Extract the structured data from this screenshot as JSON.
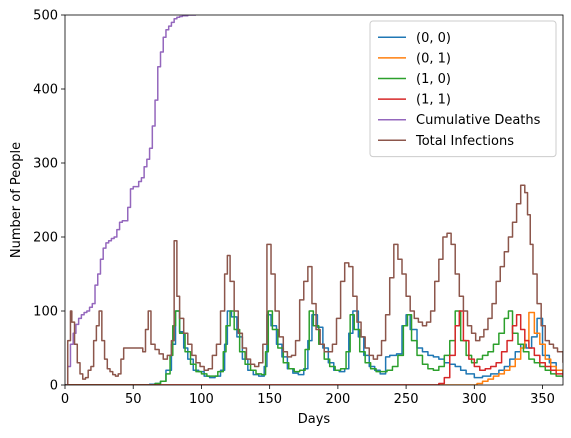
{
  "chart_data": {
    "type": "line",
    "title": "",
    "xlabel": "Days",
    "ylabel": "Number of People",
    "xlim": [
      0,
      365
    ],
    "ylim": [
      0,
      500
    ],
    "xticks": [
      0,
      50,
      100,
      150,
      200,
      250,
      300,
      350
    ],
    "yticks": [
      0,
      100,
      200,
      300,
      400,
      500
    ],
    "grid": false,
    "legend_position": "top-right",
    "series": [
      {
        "name": "(0, 0)",
        "color": "#1f77b4",
        "x": [
          0,
          60,
          62,
          66,
          70,
          74,
          78,
          81,
          84,
          87,
          90,
          94,
          98,
          102,
          106,
          110,
          114,
          117,
          119,
          122,
          126,
          130,
          134,
          138,
          142,
          146,
          148,
          151,
          155,
          159,
          163,
          167,
          171,
          175,
          178,
          181,
          185,
          189,
          193,
          197,
          201,
          205,
          208,
          211,
          215,
          219,
          223,
          227,
          231,
          235,
          238,
          243,
          247,
          250,
          253,
          258,
          262,
          266,
          270,
          274,
          278,
          282,
          286,
          290,
          294,
          300,
          306,
          312,
          318,
          322,
          326,
          330,
          334,
          338,
          342,
          346,
          350,
          355,
          360,
          365
        ],
        "y": [
          0,
          0,
          1,
          2,
          5,
          20,
          55,
          100,
          72,
          50,
          35,
          20,
          18,
          12,
          10,
          12,
          20,
          55,
          100,
          92,
          65,
          35,
          20,
          14,
          12,
          25,
          95,
          80,
          55,
          38,
          22,
          16,
          14,
          22,
          60,
          95,
          78,
          50,
          30,
          20,
          18,
          22,
          70,
          100,
          65,
          40,
          25,
          20,
          15,
          38,
          40,
          42,
          80,
          95,
          75,
          50,
          45,
          40,
          38,
          35,
          30,
          28,
          25,
          20,
          15,
          10,
          12,
          15,
          20,
          25,
          35,
          45,
          55,
          50,
          65,
          90,
          40,
          30,
          20,
          15
        ]
      },
      {
        "name": "(0, 1)",
        "color": "#ff7f0e",
        "x": [
          0,
          298,
          302,
          306,
          310,
          314,
          318,
          322,
          326,
          330,
          334,
          337,
          340,
          344,
          348,
          352,
          356,
          360,
          365
        ],
        "y": [
          0,
          0,
          2,
          5,
          8,
          12,
          15,
          20,
          25,
          35,
          50,
          60,
          98,
          70,
          55,
          35,
          25,
          20,
          15
        ]
      },
      {
        "name": "(1, 0)",
        "color": "#2ca02c",
        "x": [
          0,
          60,
          66,
          70,
          74,
          77,
          79,
          81,
          84,
          88,
          92,
          96,
          100,
          104,
          108,
          112,
          116,
          118,
          121,
          124,
          128,
          132,
          136,
          140,
          144,
          147,
          149,
          152,
          156,
          160,
          164,
          168,
          172,
          176,
          179,
          182,
          186,
          190,
          194,
          198,
          202,
          206,
          209,
          212,
          216,
          220,
          224,
          228,
          232,
          236,
          240,
          244,
          248,
          251,
          254,
          258,
          262,
          266,
          270,
          274,
          278,
          282,
          286,
          290,
          294,
          298,
          302,
          306,
          310,
          314,
          318,
          322,
          325,
          328,
          332,
          336,
          340,
          344,
          348,
          352,
          356,
          360,
          365
        ],
        "y": [
          0,
          0,
          2,
          5,
          15,
          40,
          80,
          100,
          70,
          45,
          28,
          18,
          15,
          12,
          12,
          18,
          45,
          80,
          100,
          75,
          45,
          28,
          20,
          15,
          14,
          45,
          100,
          75,
          50,
          30,
          22,
          18,
          20,
          48,
          100,
          80,
          55,
          35,
          25,
          20,
          22,
          45,
          95,
          75,
          45,
          30,
          22,
          18,
          18,
          20,
          25,
          40,
          80,
          95,
          60,
          40,
          28,
          22,
          20,
          25,
          40,
          60,
          100,
          60,
          40,
          30,
          35,
          40,
          45,
          55,
          70,
          90,
          100,
          70,
          55,
          45,
          35,
          30,
          25,
          20,
          15,
          12,
          10
        ]
      },
      {
        "name": "(1, 1)",
        "color": "#d62728",
        "x": [
          0,
          270,
          274,
          278,
          282,
          286,
          289,
          292,
          296,
          300,
          304,
          308,
          312,
          316,
          320,
          324,
          328,
          331,
          334,
          337,
          340,
          344,
          348,
          352,
          356,
          360,
          365
        ],
        "y": [
          0,
          0,
          2,
          10,
          40,
          80,
          100,
          60,
          35,
          25,
          20,
          22,
          25,
          30,
          45,
          60,
          80,
          95,
          75,
          60,
          50,
          40,
          30,
          25,
          20,
          15,
          12
        ]
      },
      {
        "name": "Cumulative Deaths",
        "color": "#9467bd",
        "x": [
          0,
          2,
          4,
          6,
          8,
          10,
          12,
          14,
          16,
          18,
          20,
          22,
          24,
          26,
          28,
          30,
          32,
          34,
          36,
          38,
          40,
          42,
          44,
          46,
          48,
          50,
          52,
          54,
          56,
          58,
          60,
          62,
          64,
          66,
          68,
          70,
          72,
          74,
          76,
          78,
          80,
          82,
          84,
          86,
          88,
          90,
          92,
          94,
          96
        ],
        "y": [
          0,
          25,
          55,
          70,
          82,
          90,
          95,
          98,
          100,
          105,
          110,
          135,
          150,
          170,
          185,
          192,
          195,
          198,
          200,
          210,
          220,
          222,
          222,
          240,
          265,
          268,
          268,
          275,
          280,
          295,
          305,
          320,
          350,
          385,
          430,
          450,
          470,
          480,
          485,
          490,
          495,
          497,
          498,
          499,
          499,
          500,
          500,
          500,
          500
        ]
      },
      {
        "name": "Total Infections",
        "color": "#8c564b",
        "x": [
          0,
          2,
          4,
          5,
          7,
          9,
          11,
          13,
          15,
          17,
          19,
          21,
          23,
          25,
          27,
          29,
          31,
          33,
          35,
          37,
          39,
          41,
          43,
          46,
          49,
          52,
          55,
          57,
          59,
          61,
          63,
          66,
          69,
          72,
          75,
          78,
          80,
          82,
          84,
          87,
          90,
          93,
          96,
          99,
          102,
          105,
          108,
          111,
          114,
          117,
          119,
          121,
          124,
          127,
          130,
          133,
          136,
          139,
          142,
          145,
          148,
          151,
          154,
          157,
          160,
          163,
          166,
          169,
          172,
          175,
          178,
          181,
          184,
          187,
          190,
          193,
          196,
          199,
          202,
          205,
          208,
          211,
          214,
          217,
          220,
          223,
          226,
          229,
          232,
          235,
          238,
          241,
          244,
          247,
          250,
          253,
          256,
          259,
          262,
          265,
          268,
          271,
          274,
          277,
          280,
          283,
          286,
          289,
          292,
          295,
          298,
          301,
          304,
          307,
          310,
          313,
          316,
          319,
          322,
          325,
          328,
          331,
          334,
          337,
          339,
          341,
          343,
          346,
          349,
          352,
          355,
          358,
          361,
          365
        ],
        "y": [
          0,
          60,
          100,
          85,
          55,
          30,
          15,
          8,
          10,
          20,
          25,
          60,
          80,
          100,
          60,
          35,
          22,
          18,
          14,
          12,
          15,
          35,
          50,
          50,
          50,
          50,
          50,
          45,
          75,
          100,
          55,
          48,
          42,
          35,
          40,
          60,
          195,
          120,
          90,
          70,
          55,
          40,
          30,
          25,
          20,
          22,
          40,
          55,
          100,
          150,
          175,
          140,
          100,
          70,
          50,
          35,
          28,
          25,
          30,
          55,
          190,
          150,
          100,
          65,
          45,
          38,
          40,
          60,
          115,
          140,
          160,
          110,
          75,
          55,
          45,
          45,
          55,
          90,
          140,
          165,
          160,
          120,
          85,
          65,
          50,
          40,
          35,
          40,
          60,
          95,
          145,
          190,
          170,
          150,
          120,
          100,
          90,
          85,
          80,
          85,
          100,
          140,
          170,
          200,
          205,
          190,
          150,
          120,
          100,
          80,
          70,
          60,
          65,
          75,
          90,
          110,
          140,
          160,
          180,
          200,
          220,
          245,
          270,
          260,
          230,
          190,
          150,
          110,
          80,
          60,
          55,
          50,
          45,
          30
        ]
      }
    ]
  }
}
